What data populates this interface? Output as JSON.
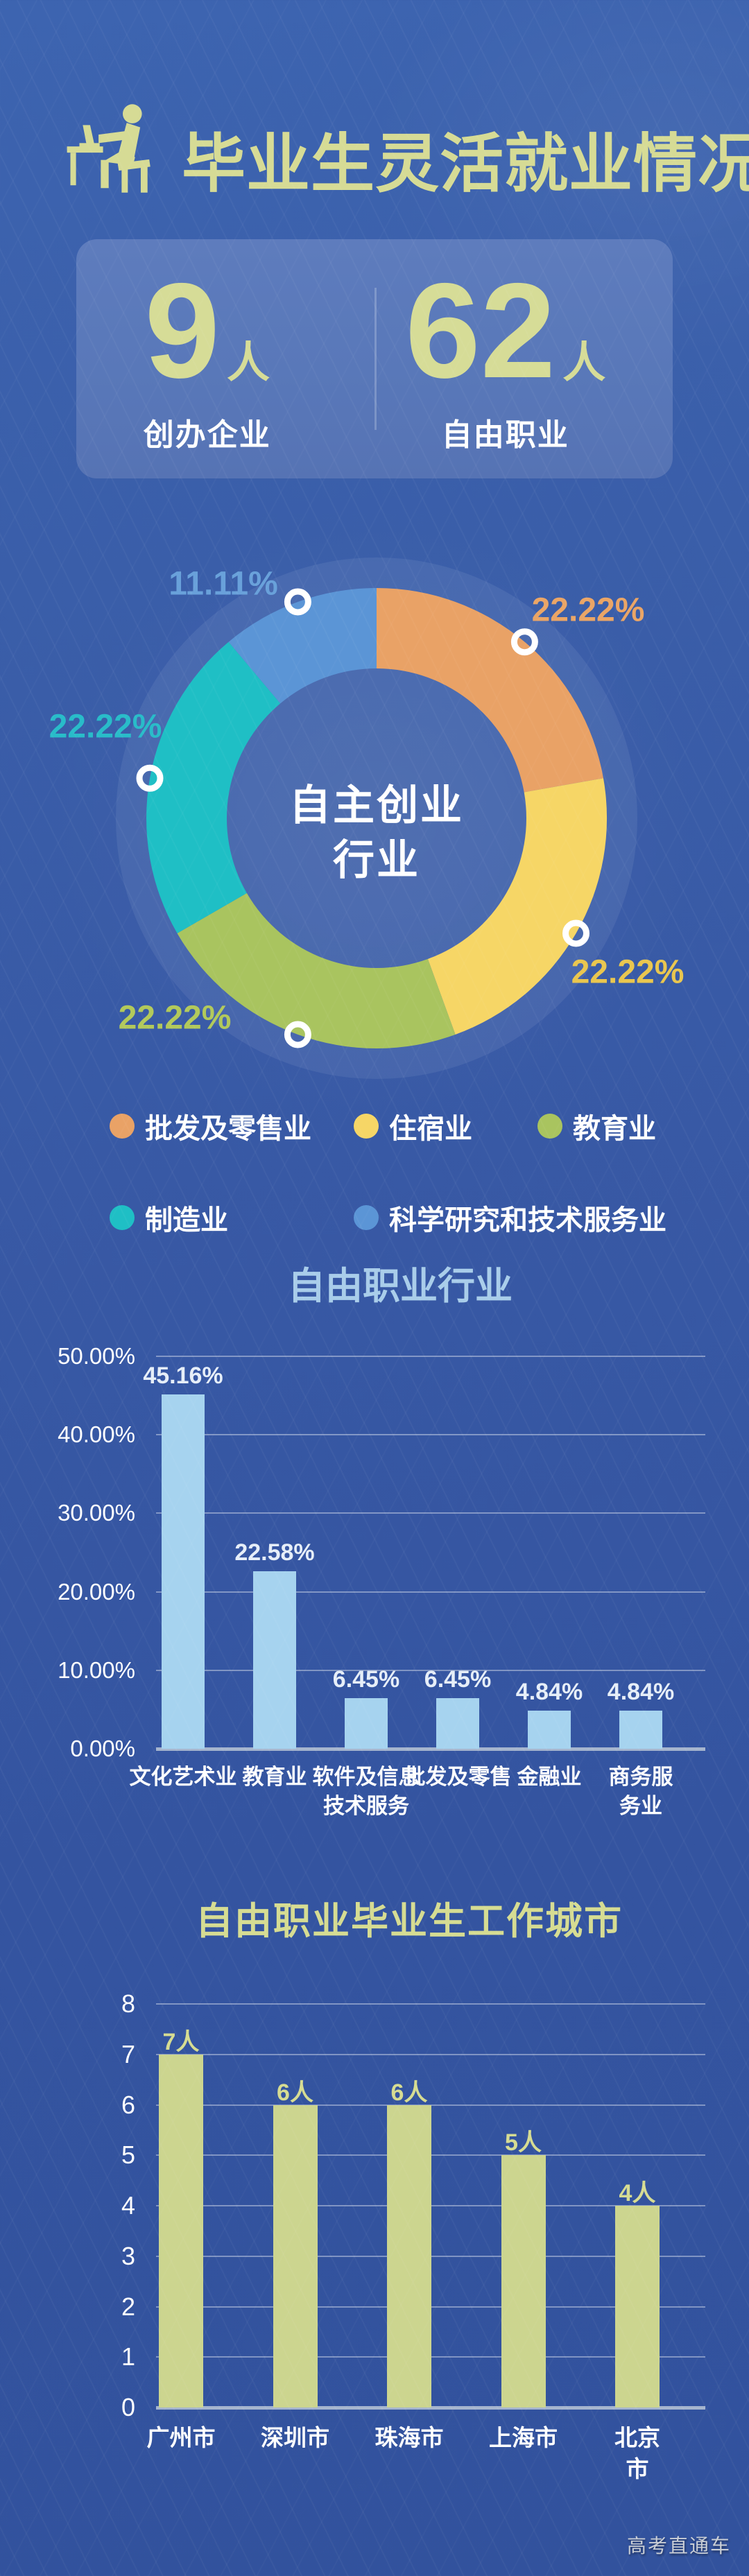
{
  "header": {
    "title": "毕业生灵活就业情况"
  },
  "stats": {
    "items": [
      {
        "value": "9",
        "unit": "人",
        "label": "创办企业"
      },
      {
        "value": "62",
        "unit": "人",
        "label": "自由职业"
      }
    ]
  },
  "colors": {
    "background": "#3a5ca9",
    "card": "#5b79ba",
    "accent_green": "#d6dc95",
    "chart1_title": "#a9cdea",
    "chart2_title": "#d6dc92",
    "axis": "#a6b5ce"
  },
  "chart_data": [
    {
      "type": "pie",
      "title": "自主创业行业",
      "center_lines": [
        "自主创业",
        "行业"
      ],
      "donut": true,
      "slices": [
        {
          "label": "批发及零售业",
          "value": 22.22,
          "pct_label": "22.22%",
          "color": "#e9a266",
          "label_color": "#eaa566"
        },
        {
          "label": "住宿业",
          "value": 22.22,
          "pct_label": "22.22%",
          "color": "#f6d666",
          "label_color": "#e9c64f"
        },
        {
          "label": "教育业",
          "value": 22.22,
          "pct_label": "22.22%",
          "color": "#a9c45f",
          "label_color": "#b2c95b"
        },
        {
          "label": "制造业",
          "value": 22.22,
          "pct_label": "22.22%",
          "color": "#1fbfc5",
          "label_color": "#29bcc9"
        },
        {
          "label": "科学研究和技术服务业",
          "value": 11.11,
          "pct_label": "11.11%",
          "color": "#5b95d6",
          "label_color": "#69a1da"
        }
      ],
      "legend_position": "bottom"
    },
    {
      "type": "bar",
      "title": "自由职业行业",
      "categories": [
        "文化艺术业",
        "教育业",
        "软件及信息\n技术服务",
        "批发及零售",
        "金融业",
        "商务服务业"
      ],
      "values": [
        45.16,
        22.58,
        6.45,
        6.45,
        4.84,
        4.84
      ],
      "value_labels": [
        "45.16%",
        "22.58%",
        "6.45%",
        "6.45%",
        "4.84%",
        "4.84%"
      ],
      "yticks": [
        [
          0,
          "0.00%"
        ],
        [
          10,
          "10.00%"
        ],
        [
          20,
          "20.00%"
        ],
        [
          30,
          "30.00%"
        ],
        [
          40,
          "40.00%"
        ],
        [
          50,
          "50.00%"
        ]
      ],
      "ylim": [
        0,
        50
      ],
      "grid": true,
      "bar_color": "#a6d3ef",
      "value_label_color": "#e6eef8"
    },
    {
      "type": "bar",
      "title": "自由职业毕业生工作城市",
      "categories": [
        "广州市",
        "深圳市",
        "珠海市",
        "上海市",
        "北京市"
      ],
      "values": [
        7,
        6,
        6,
        5,
        4
      ],
      "value_labels": [
        "7人",
        "6人",
        "6人",
        "5人",
        "4人"
      ],
      "yticks": [
        [
          0,
          "0"
        ],
        [
          1,
          "1"
        ],
        [
          2,
          "2"
        ],
        [
          3,
          "3"
        ],
        [
          4,
          "4"
        ],
        [
          5,
          "5"
        ],
        [
          6,
          "6"
        ],
        [
          7,
          "7"
        ],
        [
          8,
          "8"
        ]
      ],
      "ylim": [
        0,
        8
      ],
      "grid": true,
      "bar_color": "#ccd58f",
      "value_label_color": "#d6dc92"
    }
  ],
  "footer": {
    "watermark": "高考直通车"
  }
}
